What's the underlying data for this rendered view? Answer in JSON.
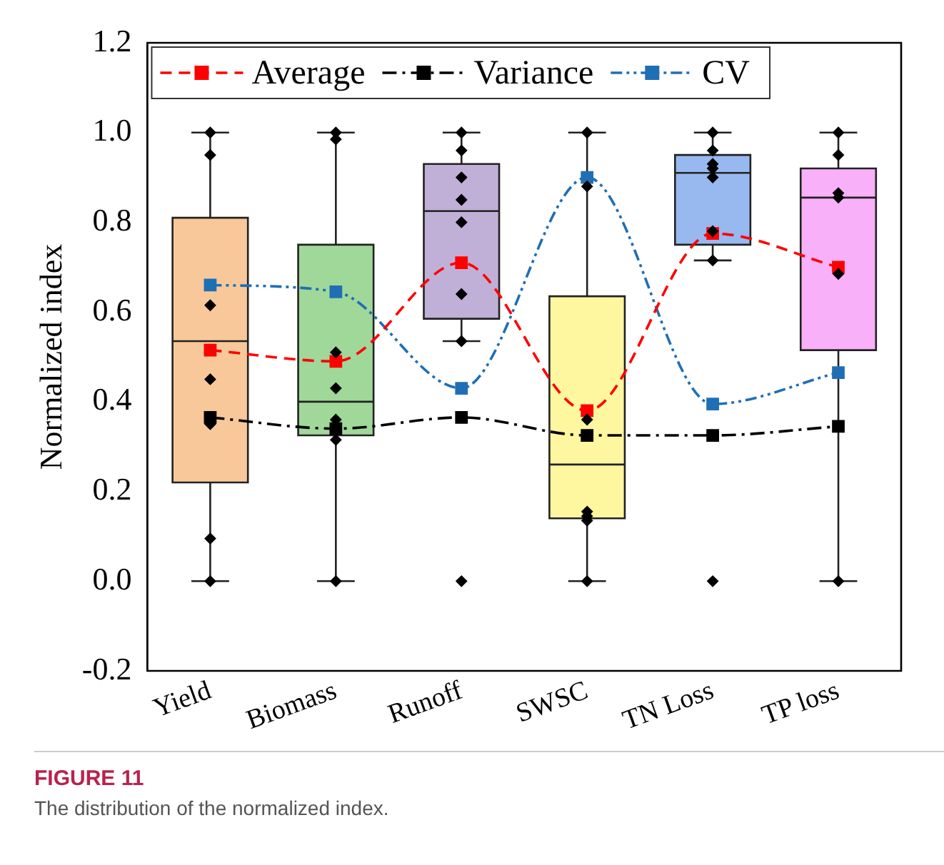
{
  "chart_data": {
    "type": "box",
    "ylabel": "Normalized index",
    "categories": [
      "Yield",
      "Biomass",
      "Runoff",
      "SWSC",
      "TN Loss",
      "TP loss"
    ],
    "colors": [
      "#f8c89a",
      "#a0d89a",
      "#c0b0d8",
      "#fff6a0",
      "#98b8f0",
      "#f8b0f8"
    ],
    "boxes": [
      {
        "low": 0,
        "q1": 0.22,
        "median": 0.535,
        "q3": 0.81,
        "high": 1.0
      },
      {
        "low": 0,
        "q1": 0.325,
        "median": 0.4,
        "q3": 0.75,
        "high": 1.0
      },
      {
        "low": 0.535,
        "q1": 0.585,
        "median": 0.825,
        "q3": 0.93,
        "high": 1.0
      },
      {
        "low": 0,
        "q1": 0.14,
        "median": 0.26,
        "q3": 0.635,
        "high": 1.0
      },
      {
        "low": 0.715,
        "q1": 0.75,
        "median": 0.91,
        "q3": 0.95,
        "high": 1.0
      },
      {
        "low": 0,
        "q1": 0.515,
        "median": 0.855,
        "q3": 0.92,
        "high": 1.0
      }
    ],
    "series": [
      {
        "type": "scatter",
        "marker": "diamond",
        "color": "#000000",
        "x": [
          "Yield",
          "Yield",
          "Yield",
          "Yield",
          "Yield",
          "Yield",
          "Yield",
          "Biomass",
          "Biomass",
          "Biomass",
          "Biomass",
          "Biomass",
          "Biomass",
          "Biomass",
          "Runoff",
          "Runoff",
          "Runoff",
          "Runoff",
          "Runoff",
          "Runoff",
          "Runoff",
          "Runoff",
          "SWSC",
          "SWSC",
          "SWSC",
          "SWSC",
          "SWSC",
          "SWSC",
          "SWSC",
          "TN Loss",
          "TN Loss",
          "TN Loss",
          "TN Loss",
          "TN Loss",
          "TN Loss",
          "TN Loss",
          "TN Loss",
          "TP loss",
          "TP loss",
          "TP loss",
          "TP loss",
          "TP loss",
          "TP loss"
        ],
        "values": [
          1.0,
          0.95,
          0.615,
          0.45,
          0.35,
          0.095,
          0,
          1.0,
          0.985,
          0.51,
          0.43,
          0.36,
          0.315,
          0,
          1.0,
          0.96,
          0.9,
          0.85,
          0.8,
          0.64,
          0.535,
          0,
          1.0,
          0.88,
          0.36,
          0.155,
          0.145,
          0.135,
          0,
          1.0,
          0.96,
          0.93,
          0.92,
          0.9,
          0.78,
          0.715,
          0,
          1.0,
          0.95,
          0.865,
          0.855,
          0.685,
          0
        ]
      },
      {
        "type": "line",
        "name": "Average",
        "color": "#ff0000",
        "marker": "square",
        "line_style": "dashed",
        "values": [
          0.515,
          0.49,
          0.71,
          0.38,
          0.775,
          0.7
        ]
      },
      {
        "type": "line",
        "name": "Variance",
        "color": "#000000",
        "marker": "square",
        "line_style": "dashdot",
        "values": [
          0.365,
          0.34,
          0.365,
          0.325,
          0.325,
          0.345
        ]
      },
      {
        "type": "line",
        "name": "CV",
        "color": "#1f6fb5",
        "marker": "square",
        "line_style": "dashdotdot",
        "values": [
          0.66,
          0.645,
          0.43,
          0.9,
          0.395,
          0.465
        ]
      }
    ],
    "ylim": [
      -0.2,
      1.2
    ],
    "yticks": [
      {
        "value": -0.2,
        "label": "-0.2"
      },
      {
        "value": 0,
        "label": "0.0"
      },
      {
        "value": 0.2,
        "label": "0.2"
      },
      {
        "value": 0.4,
        "label": "0.4"
      },
      {
        "value": 0.6,
        "label": "0.6"
      },
      {
        "value": 0.8,
        "label": "0.8"
      },
      {
        "value": 1,
        "label": "1.0"
      },
      {
        "value": 1.2,
        "label": "1.2"
      }
    ],
    "grid": false,
    "legend": "top left",
    "annotations": [
      "FIGURE 11",
      "The distribution of the normalized index."
    ]
  }
}
